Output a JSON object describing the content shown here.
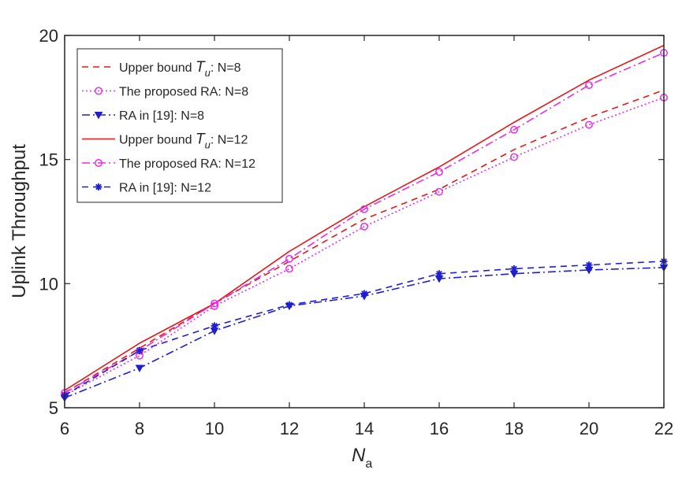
{
  "chart_data": {
    "type": "line",
    "title": "",
    "xlabel_main": "N",
    "xlabel_sub": "a",
    "ylabel": "Uplink Throughput",
    "xlim": [
      6,
      22
    ],
    "ylim": [
      5,
      20
    ],
    "x_ticks": [
      6,
      8,
      10,
      12,
      14,
      16,
      18,
      20,
      22
    ],
    "y_ticks": [
      5,
      10,
      15,
      20
    ],
    "legend_position": "top-left",
    "x": [
      6,
      8,
      10,
      12,
      14,
      16,
      18,
      20,
      22
    ],
    "series": [
      {
        "name": "Upper bound T_u: N=8",
        "legend_prefix": "Upper bound ",
        "legend_sym": "T",
        "legend_sub": "u",
        "legend_suffix": ": N=8",
        "color": "#e31a1c",
        "dash": "8,6",
        "marker": "none",
        "values": [
          5.6,
          7.4,
          9.2,
          10.9,
          12.6,
          13.8,
          15.4,
          16.7,
          17.8
        ]
      },
      {
        "name": "The proposed RA: N=8",
        "legend_prefix": "The proposed RA: N=8",
        "color": "#e52ee5",
        "dash": "2,3",
        "marker": "circle",
        "values": [
          5.5,
          7.1,
          9.1,
          10.6,
          12.3,
          13.7,
          15.1,
          16.4,
          17.5
        ]
      },
      {
        "name": "RA in [19]: N=8",
        "legend_prefix": "RA in [19]: N=8",
        "color": "#1f1fd1",
        "dash": "10,4,2,4",
        "marker": "triangle",
        "values": [
          5.4,
          6.6,
          8.1,
          9.1,
          9.5,
          10.2,
          10.4,
          10.55,
          10.65
        ]
      },
      {
        "name": "Upper bound T_u: N=12",
        "legend_prefix": "Upper bound ",
        "legend_sym": "T",
        "legend_sub": "u",
        "legend_suffix": ": N=12",
        "color": "#e31a1c",
        "dash": "",
        "marker": "none",
        "values": [
          5.7,
          7.6,
          9.2,
          11.3,
          13.1,
          14.7,
          16.5,
          18.2,
          19.6
        ]
      },
      {
        "name": "The proposed RA: N=12",
        "legend_prefix": "The proposed RA: N=12",
        "color": "#e52ee5",
        "dash": "10,4,2,4",
        "marker": "circle",
        "values": [
          5.6,
          7.3,
          9.2,
          11.0,
          13.0,
          14.5,
          16.2,
          18.0,
          19.3
        ]
      },
      {
        "name": "RA in [19]: N=12",
        "legend_prefix": "RA in [19]: N=12",
        "color": "#1f1fd1",
        "dash": "8,6",
        "marker": "star",
        "values": [
          5.5,
          7.3,
          8.3,
          9.15,
          9.6,
          10.4,
          10.6,
          10.75,
          10.9
        ]
      }
    ]
  }
}
